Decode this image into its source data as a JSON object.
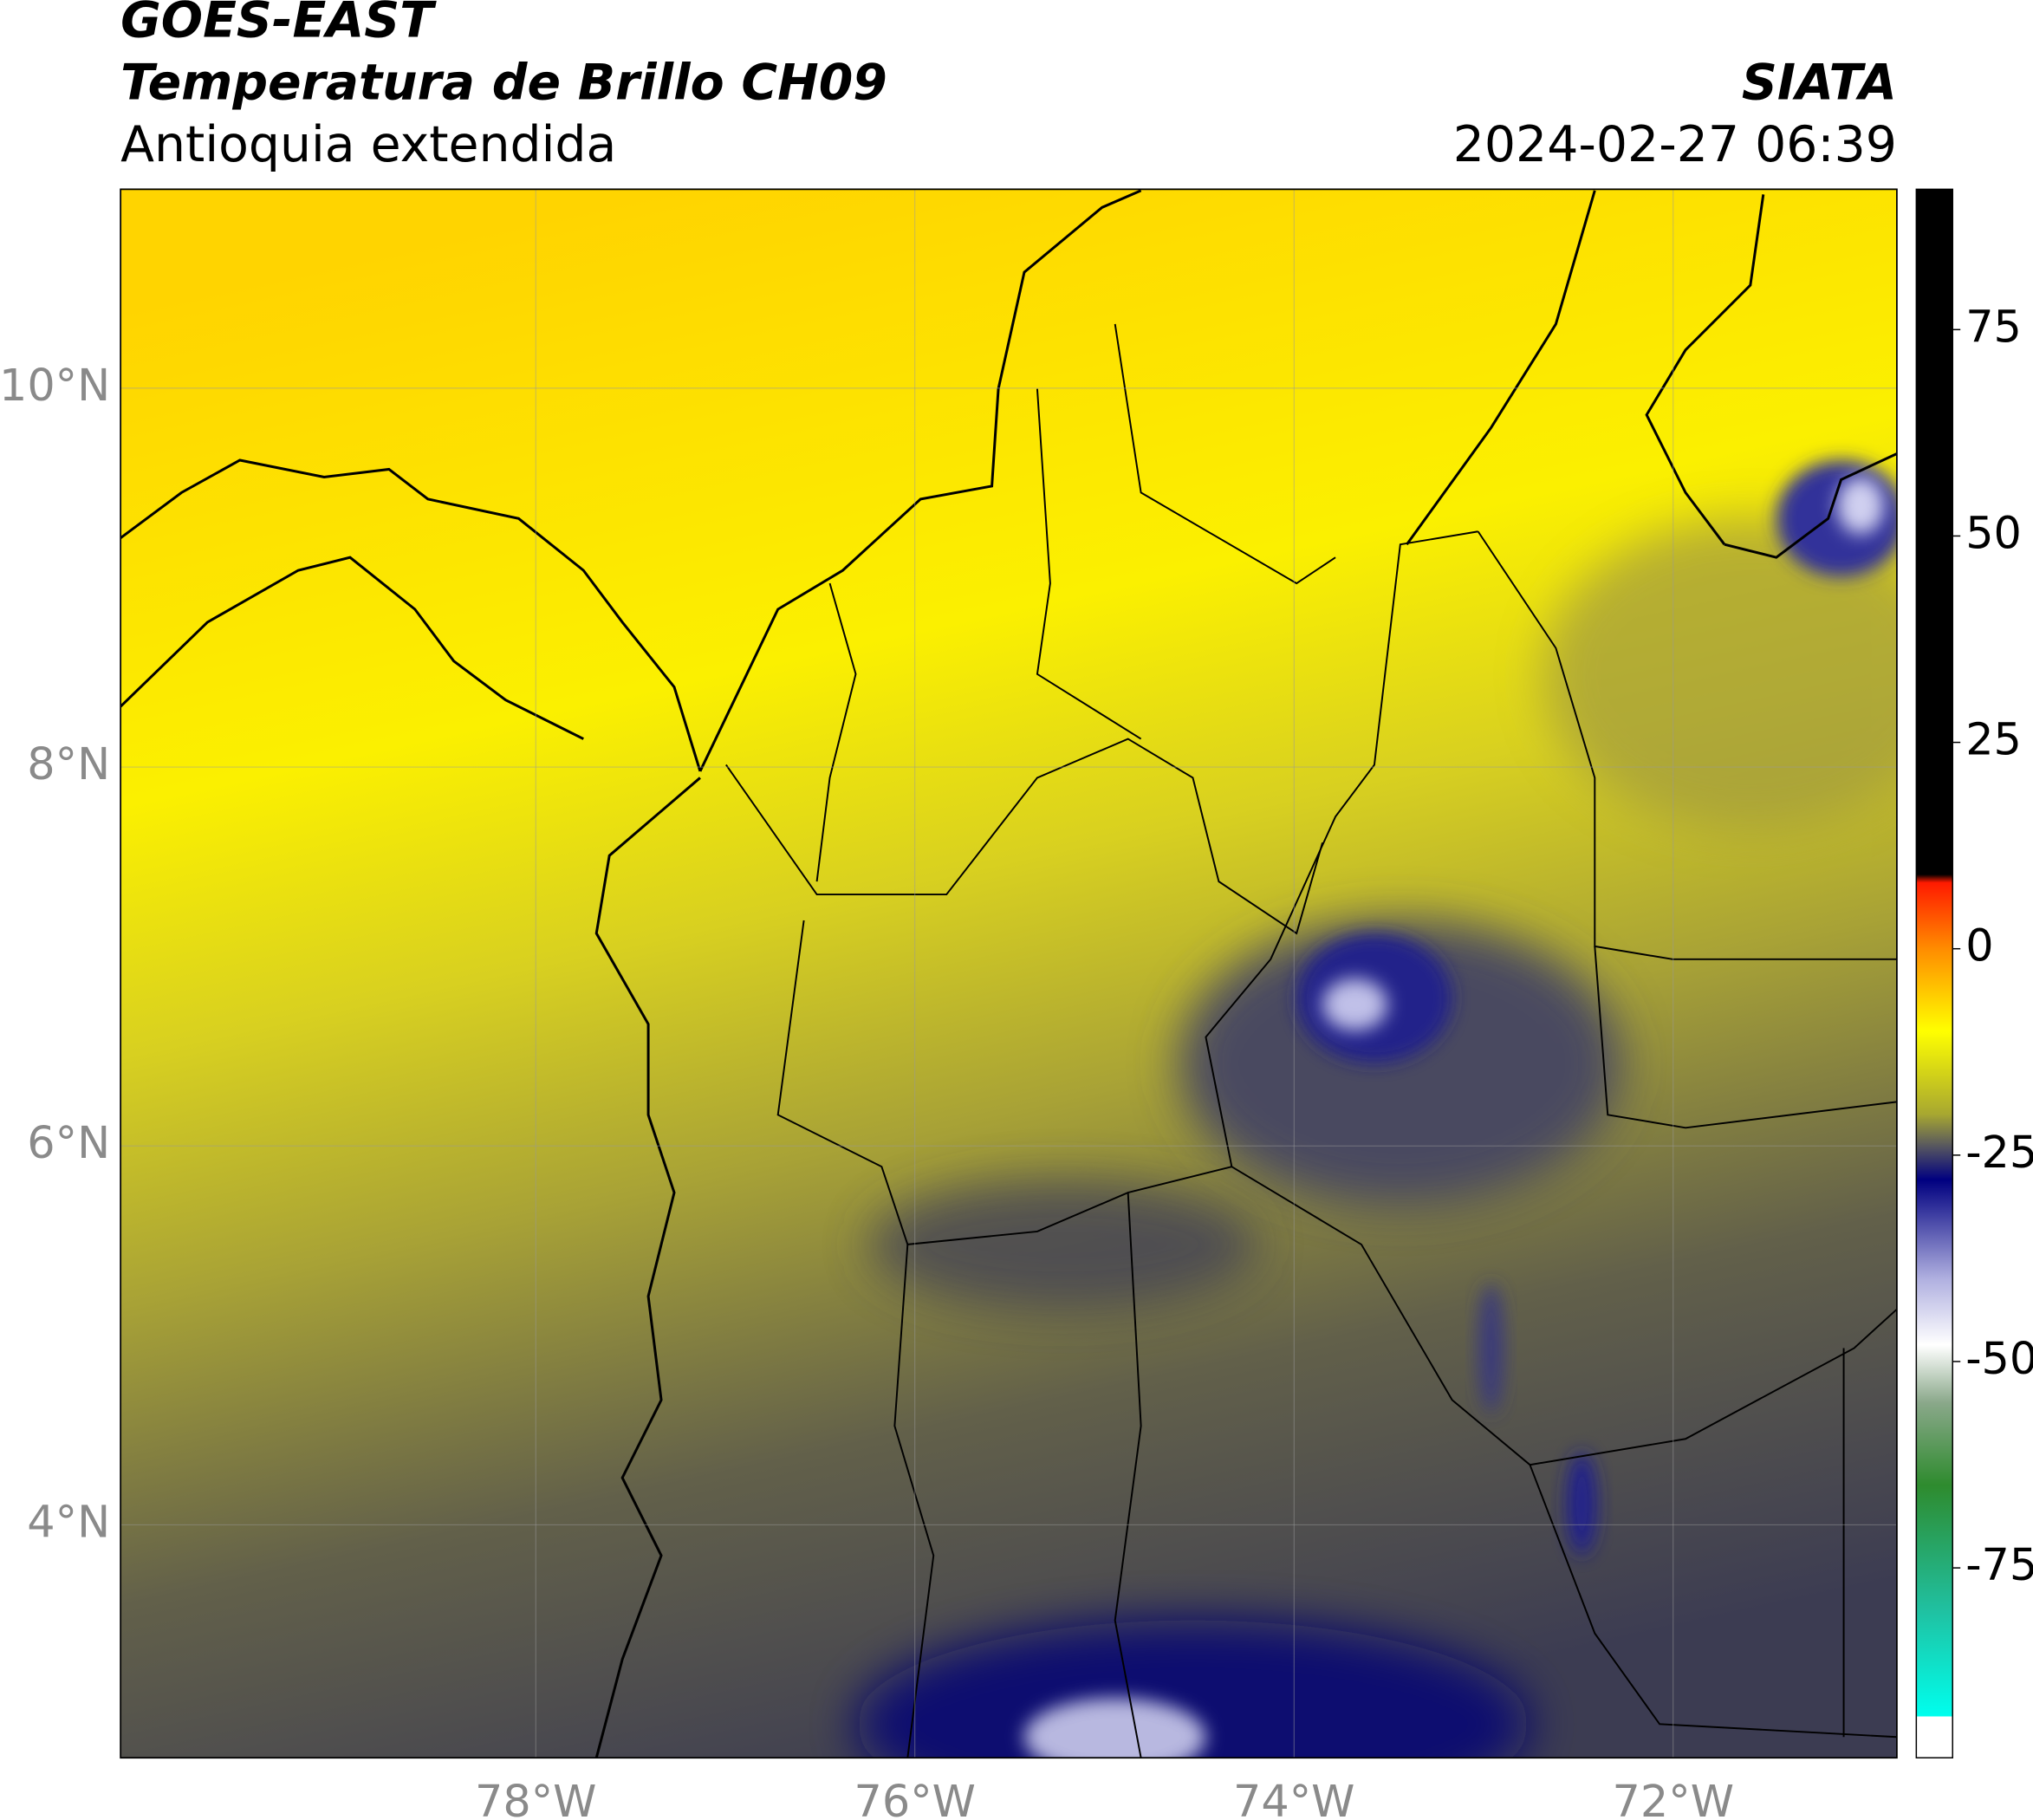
{
  "header": {
    "title": "GOES-EAST",
    "subtitle": "Temperatura de Brillo CH09",
    "region": "Antioquia extendida",
    "source": "SIATA",
    "datetime": "2024-02-27 06:39"
  },
  "map": {
    "xlim": [
      -80.19,
      -70.82
    ],
    "ylim": [
      2.77,
      11.05
    ],
    "xticks": [
      {
        "value": -78,
        "label": "78°W"
      },
      {
        "value": -76,
        "label": "76°W"
      },
      {
        "value": -74,
        "label": "74°W"
      },
      {
        "value": -72,
        "label": "72°W"
      }
    ],
    "yticks": [
      {
        "value": 10,
        "label": "10°N"
      },
      {
        "value": 8,
        "label": "8°N"
      },
      {
        "value": 6,
        "label": "6°N"
      },
      {
        "value": 4,
        "label": "4°N"
      }
    ],
    "grid": true
  },
  "colorbar": {
    "lim": [
      -98,
      92
    ],
    "ticks": [
      75,
      50,
      25,
      0,
      -25,
      -50,
      -75
    ],
    "stops": [
      {
        "value": 92,
        "color": "#000000"
      },
      {
        "value": 9,
        "color": "#000000"
      },
      {
        "value": 8,
        "color": "#ff1a00"
      },
      {
        "value": 0,
        "color": "#ff8c00"
      },
      {
        "value": -10,
        "color": "#ffff00"
      },
      {
        "value": -20,
        "color": "#a8a830"
      },
      {
        "value": -24,
        "color": "#555560"
      },
      {
        "value": -28,
        "color": "#000080"
      },
      {
        "value": -40,
        "color": "#b0b0e0"
      },
      {
        "value": -48,
        "color": "#ffffff"
      },
      {
        "value": -55,
        "color": "#8aa88a"
      },
      {
        "value": -65,
        "color": "#2e8b2e"
      },
      {
        "value": -80,
        "color": "#20c0a0"
      },
      {
        "value": -93,
        "color": "#00ffee"
      },
      {
        "value": -93,
        "color": "#ffffff"
      },
      {
        "value": -98,
        "color": "#ffffff"
      }
    ]
  }
}
